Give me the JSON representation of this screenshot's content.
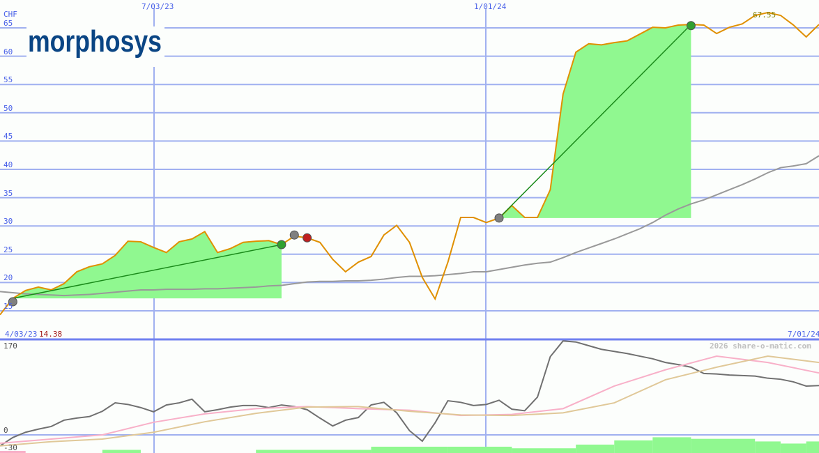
{
  "chart_data": [
    {
      "type": "line",
      "unit_label": "CHF",
      "x_start": "4/03/23",
      "x_end": "7/01/24",
      "interval": "weekly",
      "x_ticks": [
        "7/03/23",
        "1/01/24"
      ],
      "y_ticks": [
        65,
        60,
        55,
        50,
        45,
        40,
        35,
        30,
        25,
        20,
        15
      ],
      "ylim": [
        14,
        67.5
      ],
      "start_label": "4/03/23",
      "start_value": "14.38",
      "end_label": "7/01/24",
      "high_label": "67.55",
      "grid": true,
      "series": [
        {
          "role": "price",
          "color": "#e09000",
          "values": [
            14.3,
            17.2,
            18.6,
            19.2,
            18.7,
            19.8,
            21.9,
            22.8,
            23.3,
            24.8,
            27.3,
            27.2,
            26.2,
            25.3,
            27.2,
            27.7,
            29.0,
            25.3,
            26.0,
            27.1,
            27.3,
            27.4,
            26.7,
            28.2,
            27.9,
            27.1,
            24.1,
            21.9,
            23.6,
            24.6,
            28.4,
            30.1,
            27.1,
            20.9,
            17.1,
            23.6,
            31.5,
            31.5,
            30.6,
            31.4,
            33.6,
            31.5,
            31.5,
            36.4,
            53.3,
            60.7,
            62.2,
            62.0,
            62.4,
            62.7,
            63.9,
            65.1,
            65.0,
            65.5,
            65.6,
            65.5,
            64.0,
            65.1,
            65.7,
            67.2,
            67.7,
            67.2,
            65.5,
            63.4,
            65.6
          ]
        },
        {
          "role": "moving-average",
          "color": "#999999",
          "values": [
            18.4,
            18.2,
            18.0,
            17.9,
            17.8,
            17.7,
            17.8,
            17.9,
            18.1,
            18.3,
            18.5,
            18.7,
            18.7,
            18.8,
            18.8,
            18.8,
            18.9,
            18.9,
            19.0,
            19.1,
            19.2,
            19.4,
            19.5,
            19.8,
            20.1,
            20.2,
            20.2,
            20.3,
            20.3,
            20.4,
            20.6,
            20.9,
            21.1,
            21.1,
            21.2,
            21.4,
            21.6,
            21.9,
            21.9,
            22.3,
            22.7,
            23.1,
            23.4,
            23.6,
            24.4,
            25.3,
            26.1,
            26.9,
            27.7,
            28.6,
            29.5,
            30.6,
            31.9,
            33.0,
            33.9,
            34.6,
            35.5,
            36.4,
            37.3,
            38.3,
            39.4,
            40.3,
            40.6,
            41.0,
            42.4
          ]
        }
      ],
      "trades": [
        {
          "entry_week": 1,
          "exit_week": 22,
          "fill_color": "#90f890",
          "line_color": "#1a8a1a"
        },
        {
          "entry_week": 39,
          "exit_week": 54,
          "fill_color": "#90f890",
          "line_color": "#1a8a1a"
        }
      ],
      "markers": [
        {
          "week": 1,
          "value": 16.6,
          "color": "#808080"
        },
        {
          "week": 22,
          "value": 26.7,
          "color": "#30a030"
        },
        {
          "week": 23,
          "value": 28.4,
          "color": "#808080"
        },
        {
          "week": 24,
          "value": 27.9,
          "color": "#c02020"
        },
        {
          "week": 39,
          "value": 31.4,
          "color": "#808080"
        },
        {
          "week": 54,
          "value": 65.4,
          "color": "#30a030"
        }
      ],
      "logo_text": "morphosys",
      "logo_color": "#0a4584"
    },
    {
      "type": "line",
      "y_ticks": [
        170,
        0,
        -30
      ],
      "ylim": [
        -34,
        182
      ],
      "watermark": "2026 share-o-matic.com",
      "series": [
        {
          "role": "oscillator",
          "color": "#707070",
          "sample_every_weeks": 1,
          "values": [
            -21,
            -5,
            5,
            11,
            16,
            28,
            32,
            35,
            45,
            61,
            58,
            52,
            44,
            57,
            61,
            68,
            44,
            48,
            53,
            56,
            56,
            52,
            57,
            54,
            48,
            32,
            17,
            28,
            33,
            57,
            62,
            42,
            8,
            -12,
            23,
            65,
            62,
            56,
            58,
            66,
            49,
            46,
            72,
            149,
            179,
            177,
            170,
            163,
            159,
            155,
            150,
            145,
            138,
            134,
            129,
            117,
            116,
            114,
            113,
            112,
            108,
            106,
            101,
            93,
            94
          ]
        },
        {
          "role": "signal-fast",
          "color": "#f8b0c8",
          "sample_every_weeks": 4,
          "values": [
            -16,
            -8,
            0,
            24,
            40,
            50,
            54,
            50,
            47,
            37,
            39,
            50,
            93,
            124,
            150,
            138,
            118
          ]
        },
        {
          "role": "signal-slow",
          "color": "#e0c898",
          "sample_every_weeks": 4,
          "values": [
            -21,
            -13,
            -8,
            5,
            25,
            41,
            53,
            54,
            45,
            38,
            37,
            42,
            61,
            105,
            129,
            150,
            138
          ]
        }
      ],
      "histogram": [
        {
          "from_week": 0,
          "to_week": 2,
          "value": -4,
          "color": "#f8b0c8"
        },
        {
          "from_week": 8,
          "to_week": 11,
          "value": 6,
          "color": "#90f890"
        },
        {
          "from_week": 20,
          "to_week": 29,
          "value": 6,
          "color": "#90f890"
        },
        {
          "from_week": 29,
          "to_week": 35,
          "value": 12,
          "color": "#90f890"
        },
        {
          "from_week": 35,
          "to_week": 40,
          "value": 12,
          "color": "#90f890"
        },
        {
          "from_week": 40,
          "to_week": 45,
          "value": 9,
          "color": "#90f890"
        },
        {
          "from_week": 45,
          "to_week": 48,
          "value": 16,
          "color": "#90f890"
        },
        {
          "from_week": 48,
          "to_week": 51,
          "value": 24,
          "color": "#90f890"
        },
        {
          "from_week": 51,
          "to_week": 54,
          "value": 30,
          "color": "#90f890"
        },
        {
          "from_week": 54,
          "to_week": 59,
          "value": 27,
          "color": "#90f890"
        },
        {
          "from_week": 59,
          "to_week": 61,
          "value": 22,
          "color": "#90f890"
        },
        {
          "from_week": 61,
          "to_week": 63,
          "value": 18,
          "color": "#90f890"
        },
        {
          "from_week": 63,
          "to_week": 64,
          "value": 22,
          "color": "#90f890"
        }
      ]
    }
  ],
  "colors": {
    "grid": "#a0b0f0",
    "axis_text": "#4860e8",
    "panel_border": "#7080f0",
    "start_value": "#a01818",
    "watermark": "#c0c0c0",
    "low_axis_text": "#505050"
  }
}
